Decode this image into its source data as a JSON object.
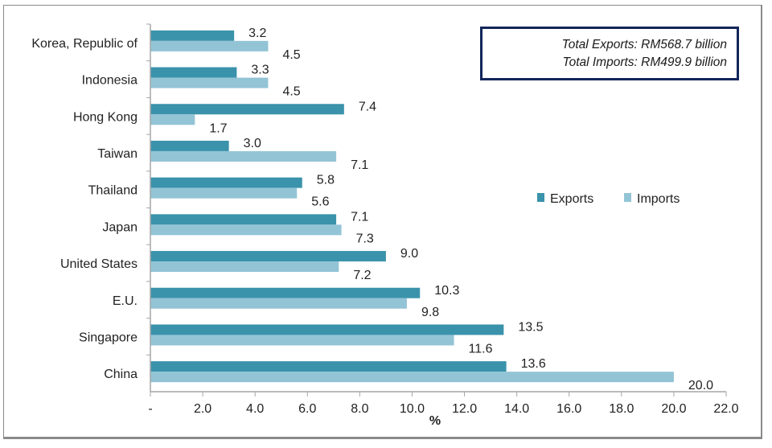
{
  "chart_data": {
    "type": "bar",
    "orientation": "horizontal",
    "title": "",
    "xlabel": "%",
    "ylabel": "",
    "xlim": [
      0,
      22
    ],
    "x_ticks": [
      "-",
      "2.0",
      "4.0",
      "6.0",
      "8.0",
      "10.0",
      "12.0",
      "14.0",
      "16.0",
      "18.0",
      "20.0",
      "22.0"
    ],
    "x_tick_values": [
      0,
      2,
      4,
      6,
      8,
      10,
      12,
      14,
      16,
      18,
      20,
      22
    ],
    "grid": false,
    "legend_position": "right-middle",
    "categories": [
      "Korea, Republic of",
      "Indonesia",
      "Hong Kong",
      "Taiwan",
      "Thailand",
      "Japan",
      "United States",
      "E.U.",
      "Singapore",
      "China"
    ],
    "series": [
      {
        "name": "Exports",
        "color": "#3a93ab",
        "values": [
          3.2,
          3.3,
          7.4,
          3.0,
          5.8,
          7.1,
          9.0,
          10.3,
          13.5,
          13.6
        ],
        "labels": [
          "3.2",
          "3.3",
          "7.4",
          "3.0",
          "5.8",
          "7.1",
          "9.0",
          "10.3",
          "13.5",
          "13.6"
        ]
      },
      {
        "name": "Imports",
        "color": "#93c4d6",
        "values": [
          4.5,
          4.5,
          1.7,
          7.1,
          5.6,
          7.3,
          7.2,
          9.8,
          11.6,
          20.0
        ],
        "labels": [
          "4.5",
          "4.5",
          "1.7",
          "7.1",
          "5.6",
          "7.3",
          "7.2",
          "9.8",
          "11.6",
          "20.0"
        ]
      }
    ]
  },
  "totals": {
    "exports_line": "Total Exports: RM568.7 billion",
    "imports_line": "Total Imports: RM499.9 billion",
    "border_color": "#12265a"
  },
  "colors": {
    "axis": "#a6a6a6",
    "text": "#222222"
  }
}
